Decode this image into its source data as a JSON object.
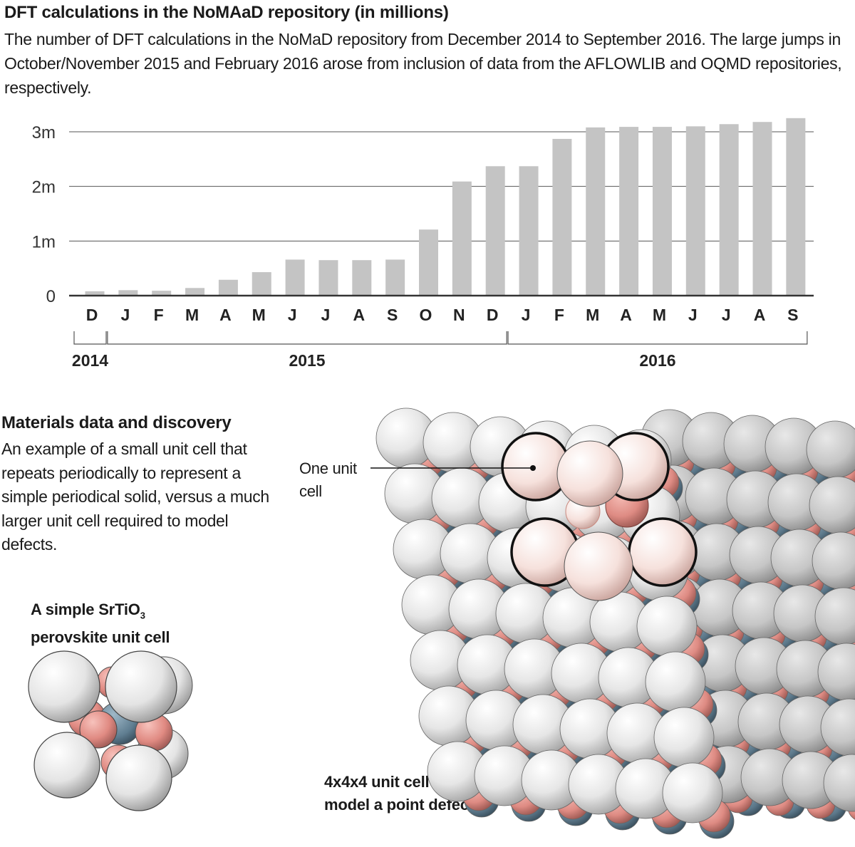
{
  "header": {
    "title": "DFT calculations in the NoMAaD repository (in millions)",
    "subtitle": "The number of DFT calculations in the NoMaD repository from December 2014 to September 2016. The large jumps in October/November 2015 and February 2016 arose from inclusion of data from the AFLOWLIB and OQMD repositories, respectively."
  },
  "chart_data": {
    "type": "bar",
    "categories": [
      "D",
      "J",
      "F",
      "M",
      "A",
      "M",
      "J",
      "J",
      "A",
      "S",
      "O",
      "N",
      "D",
      "J",
      "F",
      "M",
      "A",
      "M",
      "J",
      "J",
      "A",
      "S"
    ],
    "values": [
      0.08,
      0.1,
      0.09,
      0.14,
      0.29,
      0.43,
      0.66,
      0.65,
      0.65,
      0.66,
      1.21,
      2.09,
      2.37,
      2.37,
      2.87,
      3.08,
      3.09,
      3.09,
      3.1,
      3.14,
      3.18,
      3.25
    ],
    "yticks": [
      {
        "v": 0,
        "label": "0"
      },
      {
        "v": 1,
        "label": "1m"
      },
      {
        "v": 2,
        "label": "2m"
      },
      {
        "v": 3,
        "label": "3m"
      }
    ],
    "ylim": [
      0,
      3.3
    ],
    "years": [
      {
        "label": "2014",
        "from": 0,
        "to": 0
      },
      {
        "label": "2015",
        "from": 1,
        "to": 12
      },
      {
        "label": "2016",
        "from": 13,
        "to": 21
      }
    ],
    "grid": true,
    "bar_color": "#c4c4c4"
  },
  "materials": {
    "title": "Materials data and discovery",
    "text": "An example of a small unit cell that repeats periodically to represent a simple periodical solid, versus a much larger unit cell required to model defects.",
    "simple_cell_label_1": "A simple SrTiO",
    "simple_cell_sub": "3",
    "simple_cell_label_2": "perovskite unit cell",
    "one_unit_cell_1": "One unit",
    "one_unit_cell_2": "cell",
    "defect_label_1": "4x4x4 unit cell to",
    "defect_label_2": "model a point defect",
    "atom_colors": {
      "white": "#e9e9e9",
      "pink": "#e5938c",
      "blue": "#6f8c9e",
      "highlight": "#f7dcd6"
    }
  }
}
